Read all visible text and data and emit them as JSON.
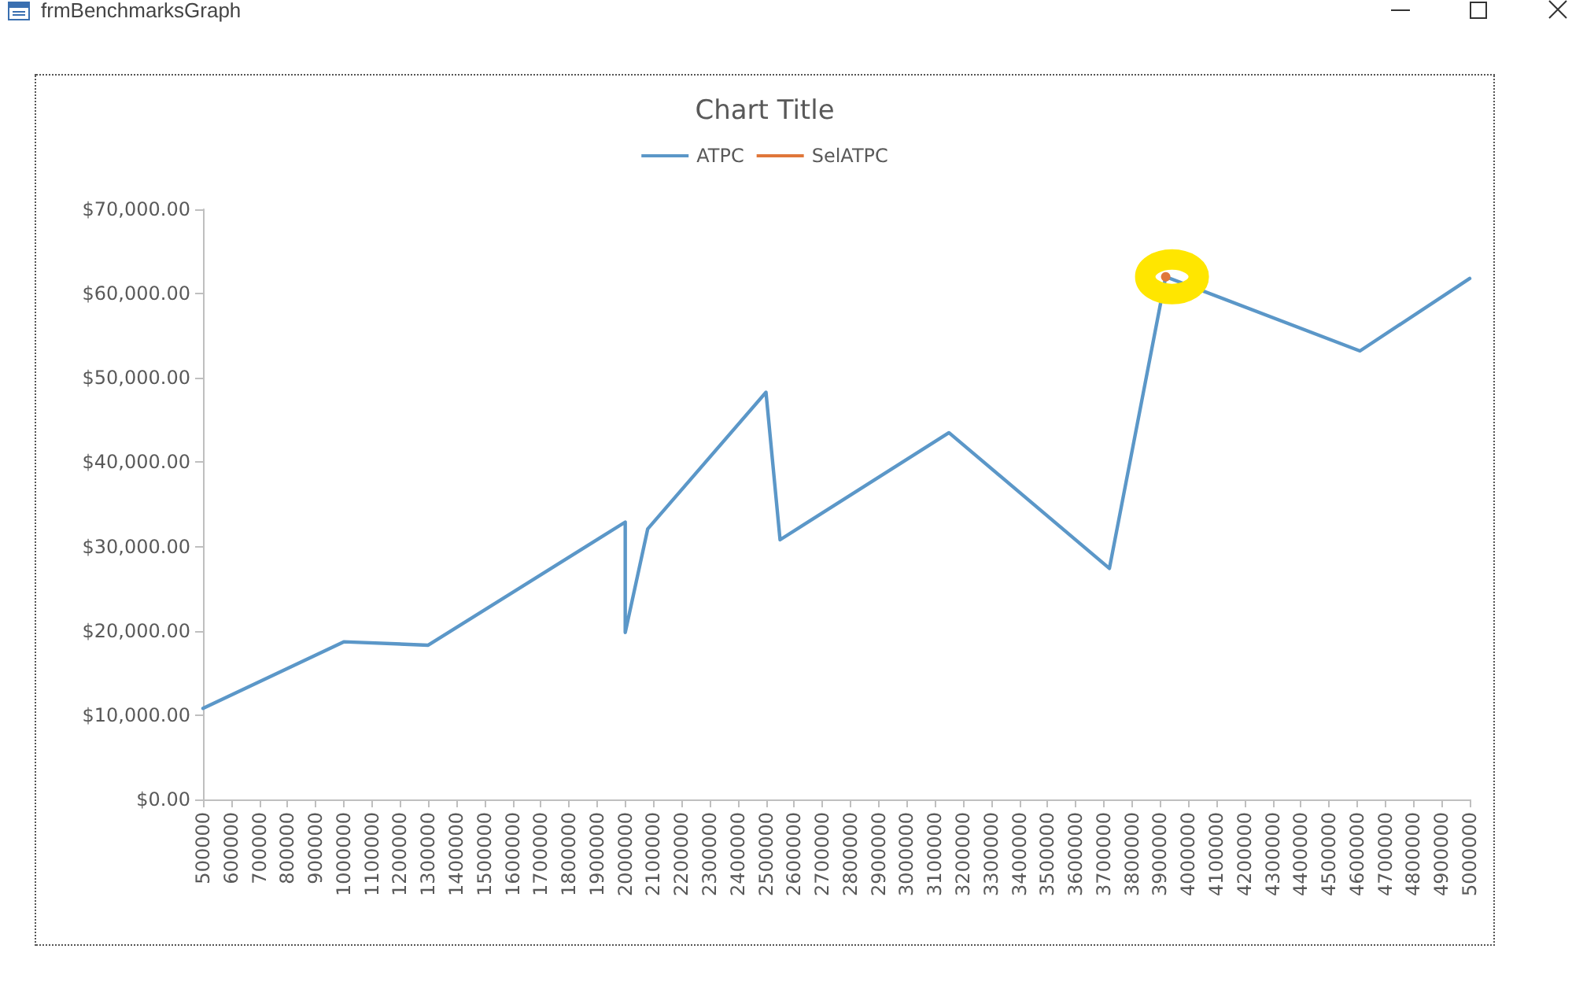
{
  "chart_data": {
    "type": "line",
    "title": "Chart Title",
    "annotations": [
      "frmBenchmarksGraph"
    ],
    "xlim": [
      500000,
      5000000
    ],
    "xticks": [
      500000,
      600000,
      700000,
      800000,
      900000,
      1000000,
      1100000,
      1200000,
      1300000,
      1400000,
      1500000,
      1600000,
      1700000,
      1800000,
      1900000,
      2000000,
      2100000,
      2200000,
      2300000,
      2400000,
      2500000,
      2600000,
      2700000,
      2800000,
      2900000,
      3000000,
      3100000,
      3200000,
      3300000,
      3400000,
      3500000,
      3600000,
      3700000,
      3800000,
      3900000,
      4000000,
      4100000,
      4200000,
      4300000,
      4400000,
      4500000,
      4600000,
      4700000,
      4800000,
      4900000,
      5000000
    ],
    "ylim": [
      0,
      70000
    ],
    "yticks": [
      {
        "value": 0,
        "label": "$0.00"
      },
      {
        "value": 10000,
        "label": "$10,000.00"
      },
      {
        "value": 20000,
        "label": "$20,000.00"
      },
      {
        "value": 30000,
        "label": "$30,000.00"
      },
      {
        "value": 40000,
        "label": "$40,000.00"
      },
      {
        "value": 50000,
        "label": "$50,000.00"
      },
      {
        "value": 60000,
        "label": "$60,000.00"
      },
      {
        "value": 70000,
        "label": "$70,000.00"
      }
    ],
    "grid": false,
    "legend": "top",
    "line_style": "solid",
    "series": [
      {
        "name": "ATPC",
        "color": "#5b97c8",
        "marker": "none",
        "x": [
          500000,
          1000000,
          1300000,
          2000000,
          2000000,
          2080000,
          2500000,
          2550000,
          3150000,
          3720000,
          3920000,
          4610000,
          5000000
        ],
        "values": [
          10800,
          18700,
          18300,
          32900,
          19800,
          32100,
          48300,
          30800,
          43500,
          27400,
          62000,
          53200,
          61800
        ]
      },
      {
        "name": "SelATPC",
        "color": "#e0773a",
        "marker": "circle",
        "x": [
          3920000
        ],
        "values": [
          62000
        ]
      }
    ]
  }
}
